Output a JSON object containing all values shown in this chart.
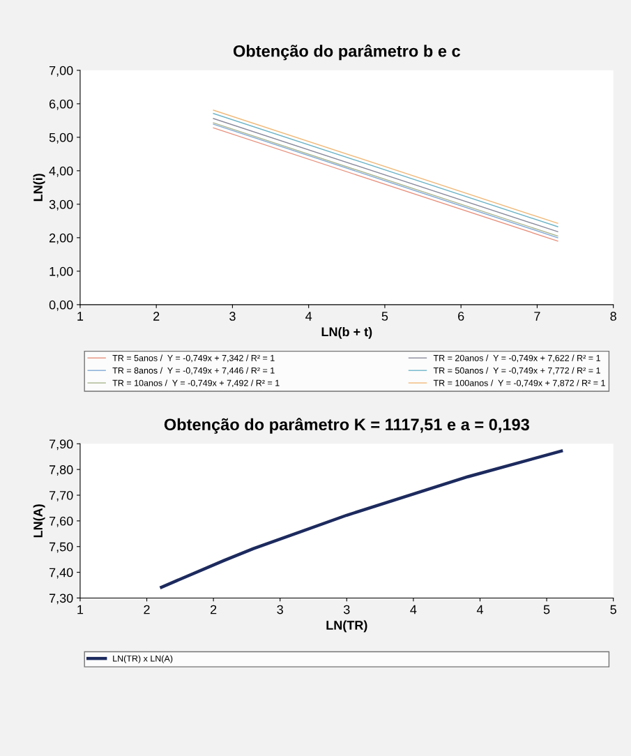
{
  "chart_data": [
    {
      "type": "line",
      "title": "Obtenção do parâmetro b e c",
      "xlabel": "LN(b + t)",
      "ylabel": "LN(i)",
      "xlim": [
        1,
        8
      ],
      "xticks": [
        1,
        2,
        3,
        4,
        5,
        6,
        7,
        8
      ],
      "ylim": [
        0,
        7
      ],
      "yticks": [
        {
          "value": 0,
          "label": "0,00"
        },
        {
          "value": 1,
          "label": "1,00"
        },
        {
          "value": 2,
          "label": "2,00"
        },
        {
          "value": 3,
          "label": "3,00"
        },
        {
          "value": 4,
          "label": "4,00"
        },
        {
          "value": 5,
          "label": "5,00"
        },
        {
          "value": 6,
          "label": "6,00"
        },
        {
          "value": 7,
          "label": "7,00"
        }
      ],
      "grid": false,
      "legend": "bottom",
      "marker": "none",
      "line_style": "solid",
      "series": [
        {
          "name": "TR = 5anos /  Y = -0,749x + 7,342 / R² = 1",
          "color": "#e8907c",
          "x": [
            2.75,
            7.27
          ],
          "values": [
            5.28,
            1.9
          ]
        },
        {
          "name": "TR = 8anos /  Y = -0,749x + 7,446 / R² = 1",
          "color": "#7fa8d4",
          "x": [
            2.75,
            7.27
          ],
          "values": [
            5.39,
            2.0
          ]
        },
        {
          "name": "TR = 10anos /  Y = -0,749x + 7,492 / R² = 1",
          "color": "#a8b48c",
          "x": [
            2.75,
            7.27
          ],
          "values": [
            5.43,
            2.05
          ]
        },
        {
          "name": "TR = 20anos /  Y = -0,749x + 7,622 / R² = 1",
          "color": "#8a8a9c",
          "x": [
            2.75,
            7.27
          ],
          "values": [
            5.56,
            2.18
          ]
        },
        {
          "name": "TR = 50anos /  Y = -0,749x + 7,772 / R² = 1",
          "color": "#6cb4c8",
          "x": [
            2.75,
            7.27
          ],
          "values": [
            5.71,
            2.33
          ]
        },
        {
          "name": "TR = 100anos /  Y = -0,749x + 7,872 / R² = 1",
          "color": "#f0b878",
          "x": [
            2.75,
            7.27
          ],
          "values": [
            5.81,
            2.43
          ]
        }
      ]
    },
    {
      "type": "line",
      "title": "Obtenção do parâmetro K = 1117,51 e a = 0,193",
      "xlabel": "LN(TR)",
      "ylabel": "LN(A)",
      "xlim": [
        1,
        5
      ],
      "xticks": [
        {
          "value": 1,
          "label": "1"
        },
        {
          "value": 1.5,
          "label": "2"
        },
        {
          "value": 2,
          "label": "2"
        },
        {
          "value": 2.5,
          "label": "3"
        },
        {
          "value": 3,
          "label": "3"
        },
        {
          "value": 3.5,
          "label": "4"
        },
        {
          "value": 4,
          "label": "4"
        },
        {
          "value": 4.5,
          "label": "5"
        },
        {
          "value": 5,
          "label": "5"
        }
      ],
      "ylim": [
        7.3,
        7.9
      ],
      "yticks": [
        {
          "value": 7.3,
          "label": "7,30"
        },
        {
          "value": 7.4,
          "label": "7,40"
        },
        {
          "value": 7.5,
          "label": "7,50"
        },
        {
          "value": 7.6,
          "label": "7,60"
        },
        {
          "value": 7.7,
          "label": "7,70"
        },
        {
          "value": 7.8,
          "label": "7,80"
        },
        {
          "value": 7.9,
          "label": "7,90"
        }
      ],
      "grid": false,
      "legend": "bottom",
      "marker": "none",
      "line_style": "solid",
      "series": [
        {
          "name": "LN(TR) x LN(A)",
          "color": "#1c2a5e",
          "x": [
            1.61,
            2.08,
            2.3,
            3.0,
            3.91,
            4.61
          ],
          "values": [
            7.342,
            7.446,
            7.492,
            7.622,
            7.772,
            7.872
          ]
        }
      ]
    }
  ]
}
